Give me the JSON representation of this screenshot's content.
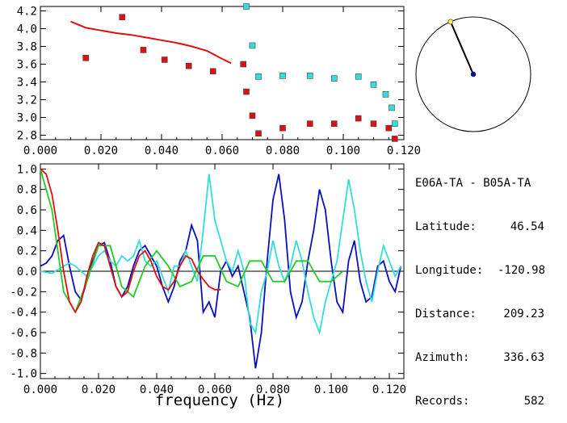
{
  "station_pair": "E06A-TA - B05A-TA",
  "info": [
    {
      "label": "Latitude:",
      "value": "46.54"
    },
    {
      "label": "Longitude:",
      "value": "-120.98"
    },
    {
      "label": "Distance:",
      "value": "209.23"
    },
    {
      "label": "Azimuth:",
      "value": "336.63"
    },
    {
      "label": "Records:",
      "value": "582"
    }
  ],
  "colors": {
    "model": "#dd1111",
    "squares_red": "#dd1111",
    "squares_cyan": "#33dddd",
    "blue": "#0a10bb",
    "cyan": "#33dddd",
    "green": "#22cc22",
    "needle": "#000000",
    "needle_tip": "#ffee44",
    "center_dot": "#0a10bb"
  },
  "chart_data": [
    {
      "type": "scatter",
      "xlabel": "",
      "ylabel": "",
      "xlim": [
        0.0,
        0.12
      ],
      "ylim": [
        2.75,
        4.25
      ],
      "x_ticks": [
        "0.000",
        "0.020",
        "0.040",
        "0.060",
        "0.080",
        "0.100",
        "0.120"
      ],
      "y_ticks": [
        "2.8",
        "3.0",
        "3.2",
        "3.4",
        "3.6",
        "3.8",
        "4.0",
        "4.2"
      ],
      "model_curve": {
        "x": [
          0.01,
          0.015,
          0.02,
          0.025,
          0.03,
          0.035,
          0.04,
          0.045,
          0.05,
          0.055,
          0.06,
          0.063
        ],
        "y": [
          4.08,
          4.01,
          3.98,
          3.95,
          3.93,
          3.9,
          3.87,
          3.84,
          3.8,
          3.75,
          3.66,
          3.61
        ]
      },
      "series": [
        {
          "name": "",
          "color": "#dd1111",
          "x": [
            0.015,
            0.027,
            0.034,
            0.041,
            0.049,
            0.057,
            0.067,
            0.068,
            0.07,
            0.072,
            0.08,
            0.089,
            0.097,
            0.105,
            0.11,
            0.115,
            0.117
          ],
          "y": [
            3.67,
            4.13,
            3.76,
            3.65,
            3.58,
            3.52,
            3.6,
            3.29,
            3.02,
            2.82,
            2.88,
            2.93,
            2.93,
            2.99,
            2.93,
            2.88,
            2.76
          ]
        },
        {
          "name": "",
          "color": "#33dddd",
          "x": [
            0.068,
            0.07,
            0.072,
            0.08,
            0.089,
            0.097,
            0.105,
            0.11,
            0.114,
            0.116,
            0.117
          ],
          "y": [
            4.25,
            3.81,
            3.46,
            3.47,
            3.47,
            3.44,
            3.46,
            3.37,
            3.26,
            3.11,
            2.93
          ]
        }
      ]
    },
    {
      "type": "line",
      "xlabel": "frequency (Hz)",
      "ylabel": "",
      "xlim": [
        0.0,
        0.125
      ],
      "ylim": [
        -1.05,
        1.05
      ],
      "x_ticks": [
        "0.000",
        "0.020",
        "0.040",
        "0.060",
        "0.080",
        "0.100",
        "0.120"
      ],
      "y_ticks": [
        "1.0",
        "0.8",
        "0.6",
        "0.4",
        "0.2",
        "0.0",
        "-0.2",
        "-0.4",
        "-0.6",
        "-0.8",
        "-1.0"
      ],
      "series": [
        {
          "name": "",
          "color": "#0a10bb",
          "x": [
            0,
            0.002,
            0.004,
            0.006,
            0.008,
            0.01,
            0.012,
            0.014,
            0.016,
            0.018,
            0.02,
            0.022,
            0.024,
            0.026,
            0.028,
            0.03,
            0.032,
            0.034,
            0.036,
            0.038,
            0.04,
            0.042,
            0.044,
            0.046,
            0.048,
            0.05,
            0.052,
            0.054,
            0.056,
            0.058,
            0.06,
            0.062,
            0.064,
            0.066,
            0.068,
            0.07,
            0.072,
            0.074,
            0.076,
            0.078,
            0.08,
            0.082,
            0.084,
            0.086,
            0.088,
            0.09,
            0.092,
            0.094,
            0.096,
            0.098,
            0.1,
            0.102,
            0.104,
            0.106,
            0.108,
            0.11,
            0.112,
            0.114,
            0.116,
            0.118,
            0.12,
            0.122,
            0.124
          ],
          "y": [
            0.05,
            0.08,
            0.15,
            0.3,
            0.35,
            0.05,
            -0.2,
            -0.28,
            -0.1,
            0.1,
            0.25,
            0.28,
            0.1,
            -0.15,
            -0.25,
            -0.15,
            0.05,
            0.2,
            0.25,
            0.15,
            0.05,
            -0.15,
            -0.3,
            -0.15,
            0.1,
            0.2,
            0.45,
            0.3,
            -0.4,
            -0.3,
            -0.45,
            0.0,
            0.1,
            -0.05,
            0.05,
            -0.2,
            -0.45,
            -0.95,
            -0.6,
            0.1,
            0.7,
            0.95,
            0.5,
            -0.2,
            -0.45,
            -0.3,
            0.1,
            0.4,
            0.8,
            0.6,
            0.1,
            -0.3,
            -0.4,
            0.1,
            0.3,
            -0.1,
            -0.3,
            -0.25,
            0.05,
            0.1,
            -0.1,
            -0.2,
            0.05
          ]
        },
        {
          "name": "",
          "color": "#33dddd",
          "x": [
            0,
            0.004,
            0.008,
            0.01,
            0.012,
            0.014,
            0.016,
            0.018,
            0.02,
            0.022,
            0.024,
            0.026,
            0.028,
            0.03,
            0.032,
            0.034,
            0.036,
            0.038,
            0.04,
            0.042,
            0.044,
            0.046,
            0.048,
            0.05,
            0.052,
            0.054,
            0.056,
            0.058,
            0.06,
            0.062,
            0.064,
            0.066,
            0.068,
            0.07,
            0.072,
            0.074,
            0.076,
            0.078,
            0.08,
            0.082,
            0.084,
            0.086,
            0.088,
            0.09,
            0.092,
            0.094,
            0.096,
            0.098,
            0.1,
            0.102,
            0.104,
            0.106,
            0.108,
            0.11,
            0.112,
            0.114,
            0.116,
            0.118,
            0.12,
            0.122,
            0.124
          ],
          "y": [
            0.0,
            -0.02,
            0.05,
            0.08,
            0.05,
            0.0,
            -0.05,
            0.05,
            0.15,
            0.2,
            0.1,
            0.05,
            0.15,
            0.1,
            0.15,
            0.3,
            0.1,
            0.05,
            0.1,
            -0.05,
            -0.2,
            0.05,
            0.05,
            0.2,
            0.05,
            -0.1,
            0.4,
            0.95,
            0.5,
            0.3,
            0.1,
            0.0,
            0.2,
            0.0,
            -0.5,
            -0.6,
            -0.2,
            0.0,
            0.3,
            0.05,
            -0.1,
            0.05,
            0.3,
            0.1,
            -0.2,
            -0.45,
            -0.6,
            -0.3,
            -0.1,
            0.1,
            0.5,
            0.9,
            0.6,
            0.2,
            -0.1,
            -0.3,
            0.0,
            0.25,
            0.1,
            -0.05,
            0.05
          ]
        },
        {
          "name": "",
          "color": "#22cc22",
          "x": [
            0,
            0.004,
            0.008,
            0.012,
            0.016,
            0.02,
            0.024,
            0.028,
            0.032,
            0.036,
            0.04,
            0.044,
            0.048,
            0.052,
            0.056,
            0.06,
            0.064,
            0.068,
            0.072,
            0.076,
            0.08,
            0.084,
            0.088,
            0.092,
            0.096,
            0.1,
            0.104
          ],
          "y": [
            1.0,
            0.6,
            -0.2,
            -0.4,
            -0.1,
            0.25,
            0.25,
            -0.15,
            -0.25,
            0.05,
            0.2,
            0.05,
            -0.15,
            -0.1,
            0.15,
            0.15,
            -0.1,
            -0.15,
            0.1,
            0.1,
            -0.1,
            -0.1,
            0.1,
            0.1,
            -0.1,
            -0.1,
            0.0
          ]
        },
        {
          "name": "",
          "color": "#dd1111",
          "x": [
            0,
            0.002,
            0.004,
            0.006,
            0.008,
            0.01,
            0.012,
            0.014,
            0.016,
            0.018,
            0.02,
            0.022,
            0.024,
            0.026,
            0.028,
            0.03,
            0.032,
            0.034,
            0.036,
            0.038,
            0.04,
            0.042,
            0.044,
            0.046,
            0.048,
            0.05,
            0.052,
            0.054,
            0.056,
            0.058,
            0.06,
            0.062
          ],
          "y": [
            1.0,
            0.95,
            0.75,
            0.4,
            0.0,
            -0.3,
            -0.4,
            -0.3,
            -0.05,
            0.15,
            0.28,
            0.25,
            0.05,
            -0.15,
            -0.25,
            -0.2,
            0.0,
            0.15,
            0.2,
            0.1,
            -0.05,
            -0.15,
            -0.18,
            -0.1,
            0.05,
            0.15,
            0.12,
            0.0,
            -0.08,
            -0.15,
            -0.18,
            -0.18
          ]
        }
      ]
    },
    {
      "type": "polar",
      "needle_azimuth_deg": 336.63,
      "needle_length": 1.0
    }
  ]
}
